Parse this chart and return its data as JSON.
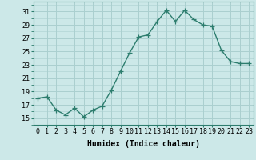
{
  "x": [
    0,
    1,
    2,
    3,
    4,
    5,
    6,
    7,
    8,
    9,
    10,
    11,
    12,
    13,
    14,
    15,
    16,
    17,
    18,
    19,
    20,
    21,
    22,
    23
  ],
  "y": [
    18.0,
    18.2,
    16.2,
    15.5,
    16.5,
    15.2,
    16.2,
    16.8,
    19.2,
    22.0,
    24.8,
    27.2,
    27.5,
    29.5,
    31.2,
    29.5,
    31.2,
    29.8,
    29.0,
    28.8,
    25.2,
    23.5,
    23.2,
    23.2
  ],
  "line_color": "#2d7d6e",
  "marker": "+",
  "marker_size": 4,
  "bg_color": "#cce8e8",
  "grid_color": "#aacfcf",
  "xlabel": "Humidex (Indice chaleur)",
  "ylabel": "",
  "yticks": [
    15,
    17,
    19,
    21,
    23,
    25,
    27,
    29,
    31
  ],
  "xticks": [
    0,
    1,
    2,
    3,
    4,
    5,
    6,
    7,
    8,
    9,
    10,
    11,
    12,
    13,
    14,
    15,
    16,
    17,
    18,
    19,
    20,
    21,
    22,
    23
  ],
  "ylim": [
    14.0,
    32.5
  ],
  "xlim": [
    -0.5,
    23.5
  ],
  "xlabel_fontsize": 7,
  "tick_fontsize": 6,
  "line_width": 1.0
}
